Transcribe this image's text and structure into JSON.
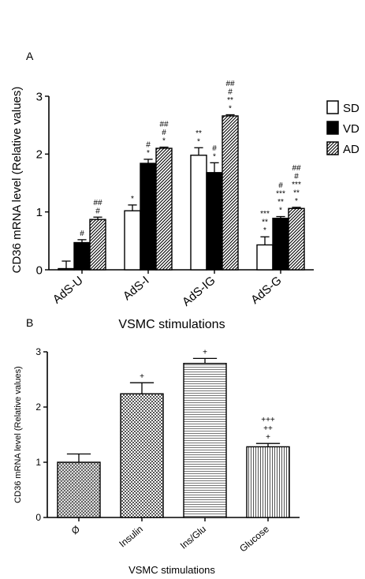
{
  "chart_data": [
    {
      "type": "bar",
      "panel_label": "A",
      "xlabel": "VSMC stimulations",
      "ylabel": "CD36 mRNA level (Relative values)",
      "ylim": [
        0,
        3
      ],
      "yticks": [
        "0",
        "1",
        "2",
        "3"
      ],
      "categories": [
        "AdS-U",
        "AdS-I",
        "AdS-IG",
        "AdS-G"
      ],
      "legend_position": "right",
      "series": [
        {
          "name": "SD",
          "pattern": "open",
          "values": [
            0.02,
            1.02,
            1.98,
            0.43
          ],
          "errors": [
            0.13,
            0.1,
            0.13,
            0.14
          ],
          "annotations": [
            [],
            [
              "*"
            ],
            [
              "*",
              "**"
            ],
            [
              "*",
              "**",
              "***"
            ]
          ]
        },
        {
          "name": "VD",
          "pattern": "solid",
          "values": [
            0.47,
            1.84,
            1.68,
            0.89
          ],
          "errors": [
            0.05,
            0.07,
            0.17,
            0.03
          ],
          "annotations": [
            [
              "#"
            ],
            [
              "*",
              "#"
            ],
            [
              "*",
              "#"
            ],
            [
              "*",
              "**",
              "***",
              "#"
            ]
          ]
        },
        {
          "name": "AD",
          "pattern": "hatched",
          "values": [
            0.87,
            2.1,
            2.66,
            1.06
          ],
          "errors": [
            0.04,
            0.02,
            0.02,
            0.02
          ],
          "annotations": [
            [
              "#",
              "##"
            ],
            [
              "*",
              "#",
              "##"
            ],
            [
              "*",
              "**",
              "#",
              "##"
            ],
            [
              "*",
              "**",
              "***",
              "#",
              "##"
            ]
          ]
        }
      ]
    },
    {
      "type": "bar",
      "panel_label": "B",
      "xlabel": "VSMC stimulations",
      "ylabel": "CD36 mRNA level (Relative values)",
      "ylim": [
        0,
        3
      ],
      "yticks": [
        "0",
        "1",
        "2",
        "3"
      ],
      "categories": [
        "Ø",
        "Insulin",
        "Ins/Glu",
        "Glucose"
      ],
      "values": [
        1.0,
        2.24,
        2.79,
        1.28
      ],
      "errors": [
        0.15,
        0.2,
        0.09,
        0.06
      ],
      "patterns": [
        "crosshatch",
        "checker",
        "horizontal",
        "vertical"
      ],
      "annotations": [
        [],
        [
          "+"
        ],
        [
          "+"
        ],
        [
          "+",
          "++",
          "+++"
        ]
      ]
    }
  ]
}
